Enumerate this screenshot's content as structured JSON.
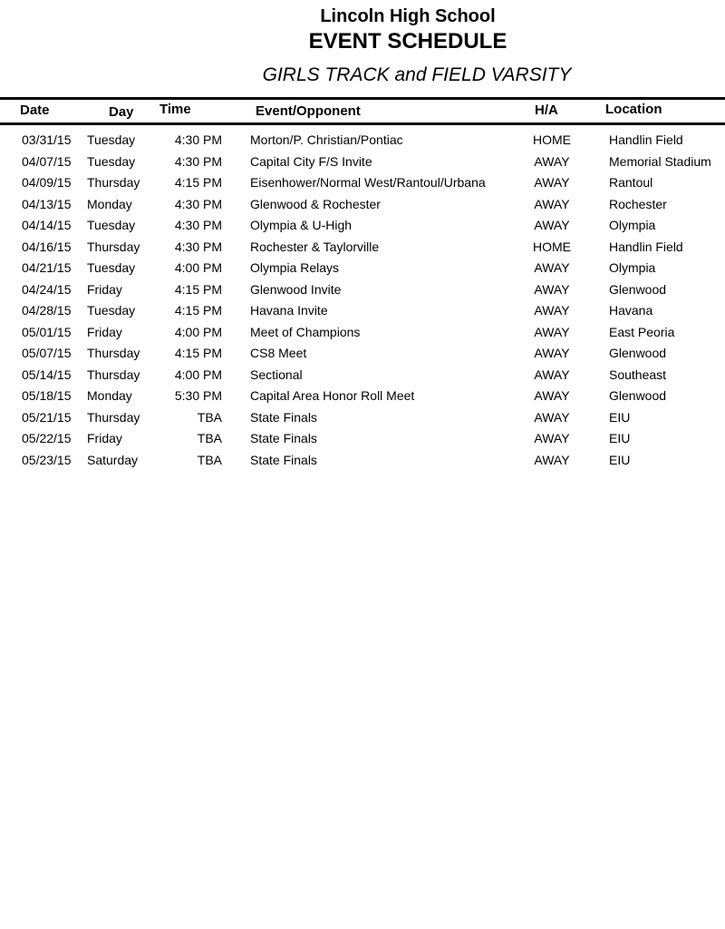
{
  "header": {
    "school": "Lincoln High School",
    "title": "EVENT SCHEDULE",
    "subtitle": "GIRLS TRACK and FIELD VARSITY"
  },
  "columns": {
    "date": "Date",
    "day": "Day",
    "time": "Time",
    "event": "Event/Opponent",
    "ha": "H/A",
    "location": "Location"
  },
  "rows": [
    {
      "date": "03/31/15",
      "day": "Tuesday",
      "time": "4:30 PM",
      "event": "Morton/P. Christian/Pontiac",
      "ha": "HOME",
      "location": "Handlin Field"
    },
    {
      "date": "04/07/15",
      "day": "Tuesday",
      "time": "4:30 PM",
      "event": "Capital City F/S Invite",
      "ha": "AWAY",
      "location": "Memorial Stadium"
    },
    {
      "date": "04/09/15",
      "day": "Thursday",
      "time": "4:15 PM",
      "event": "Eisenhower/Normal West/Rantoul/Urbana",
      "ha": "AWAY",
      "location": "Rantoul"
    },
    {
      "date": "04/13/15",
      "day": "Monday",
      "time": "4:30 PM",
      "event": "Glenwood & Rochester",
      "ha": "AWAY",
      "location": "Rochester"
    },
    {
      "date": "04/14/15",
      "day": "Tuesday",
      "time": "4:30 PM",
      "event": "Olympia & U-High",
      "ha": "AWAY",
      "location": "Olympia"
    },
    {
      "date": "04/16/15",
      "day": "Thursday",
      "time": "4:30 PM",
      "event": "Rochester & Taylorville",
      "ha": "HOME",
      "location": "Handlin Field"
    },
    {
      "date": "04/21/15",
      "day": "Tuesday",
      "time": "4:00 PM",
      "event": "Olympia Relays",
      "ha": "AWAY",
      "location": "Olympia"
    },
    {
      "date": "04/24/15",
      "day": "Friday",
      "time": "4:15 PM",
      "event": "Glenwood Invite",
      "ha": "AWAY",
      "location": "Glenwood"
    },
    {
      "date": "04/28/15",
      "day": "Tuesday",
      "time": "4:15 PM",
      "event": "Havana Invite",
      "ha": "AWAY",
      "location": "Havana"
    },
    {
      "date": "05/01/15",
      "day": "Friday",
      "time": "4:00 PM",
      "event": "Meet of Champions",
      "ha": "AWAY",
      "location": "East Peoria"
    },
    {
      "date": "05/07/15",
      "day": "Thursday",
      "time": "4:15 PM",
      "event": "CS8 Meet",
      "ha": "AWAY",
      "location": "Glenwood"
    },
    {
      "date": "05/14/15",
      "day": "Thursday",
      "time": "4:00 PM",
      "event": "Sectional",
      "ha": "AWAY",
      "location": "Southeast"
    },
    {
      "date": "05/18/15",
      "day": "Monday",
      "time": "5:30 PM",
      "event": "Capital Area Honor Roll Meet",
      "ha": "AWAY",
      "location": "Glenwood"
    },
    {
      "date": "05/21/15",
      "day": "Thursday",
      "time": "TBA",
      "event": "State Finals",
      "ha": "AWAY",
      "location": "EIU"
    },
    {
      "date": "05/22/15",
      "day": "Friday",
      "time": "TBA",
      "event": "State Finals",
      "ha": "AWAY",
      "location": "EIU"
    },
    {
      "date": "05/23/15",
      "day": "Saturday",
      "time": "TBA",
      "event": "State Finals",
      "ha": "AWAY",
      "location": "EIU"
    }
  ]
}
